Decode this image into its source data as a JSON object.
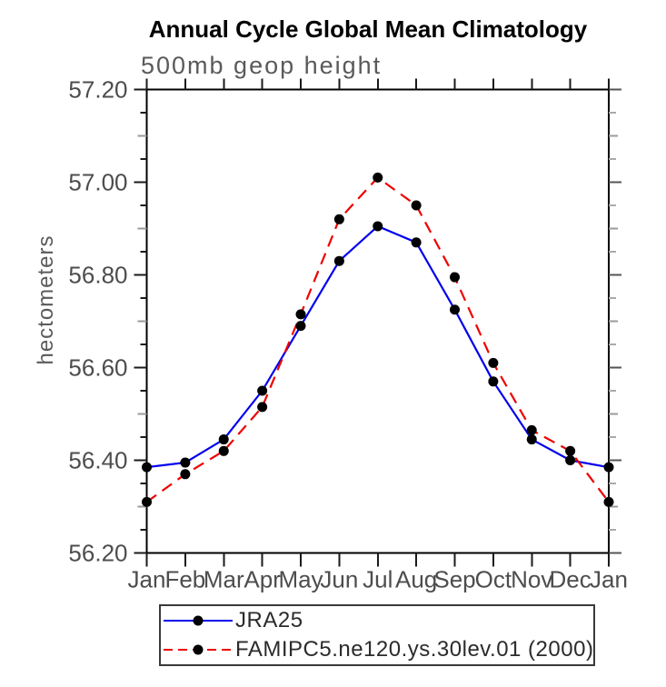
{
  "window": {
    "background": "#ffffff"
  },
  "chart_data": {
    "type": "line",
    "title": "Annual Cycle Global Mean Climatology",
    "subtitle": "500mb geop height",
    "ylabel": "hectometers",
    "xlabel": "",
    "categories": [
      "Jan",
      "Feb",
      "Mar",
      "Apr",
      "May",
      "Jun",
      "Jul",
      "Aug",
      "Sep",
      "Oct",
      "Nov",
      "Dec",
      "Jan"
    ],
    "ylim": [
      56.2,
      57.2
    ],
    "ytick_step": 0.2,
    "yminor_step": 0.05,
    "ytick_labels": [
      "56.20",
      "56.40",
      "56.60",
      "56.80",
      "57.00",
      "57.20"
    ],
    "grid": false,
    "legend_position": "bottom-left",
    "marker": "filled-circle",
    "marker_color": "#000000",
    "axis_color": "#000000",
    "tick_color_major": "#1a1a1a",
    "tick_color_medium": "#9a9a9a",
    "tick_color_right_minor": "#aaaaaa",
    "label_color": "#4d4d4d",
    "series": [
      {
        "name": "JRA25",
        "color": "#0000ee",
        "style": "solid",
        "values": [
          56.385,
          56.395,
          56.445,
          56.55,
          56.69,
          56.83,
          56.905,
          56.87,
          56.725,
          56.57,
          56.445,
          56.4,
          56.385
        ]
      },
      {
        "name": "FAMIPC5.ne120.ys.30lev.01 (2000)",
        "color": "#ee0000",
        "style": "dashed",
        "values": [
          56.31,
          56.37,
          56.42,
          56.515,
          56.715,
          56.92,
          57.01,
          56.95,
          56.795,
          56.61,
          56.465,
          56.42,
          56.31
        ]
      }
    ]
  }
}
